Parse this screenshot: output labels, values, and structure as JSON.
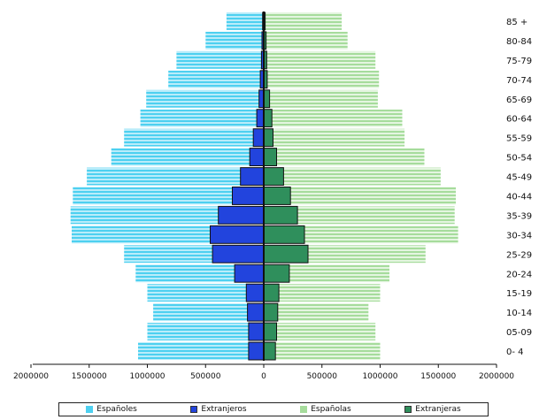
{
  "chart_data": {
    "type": "bar",
    "orientation": "horizontal-pyramid",
    "title": "",
    "xlabel": "",
    "ylabel": "",
    "categories": [
      "0-4",
      "05-09",
      "10-14",
      "15-19",
      "20-24",
      "25-29",
      "30-34",
      "35-39",
      "40-44",
      "45-49",
      "50-54",
      "55-59",
      "60-64",
      "65-69",
      "70-74",
      "75-79",
      "80-84",
      "85 +"
    ],
    "category_labels": [
      "0- 4",
      "05-09",
      "10-14",
      "15-19",
      "20-24",
      "25-29",
      "30-34",
      "35-39",
      "40-44",
      "45-49",
      "50-54",
      "55-59",
      "60-64",
      "65-69",
      "70-74",
      "75-79",
      "80-84",
      "85 +"
    ],
    "xlim": [
      -2000000,
      2000000
    ],
    "x_ticks": [
      -2000000,
      -1500000,
      -1000000,
      -500000,
      0,
      500000,
      1000000,
      1500000,
      2000000
    ],
    "x_tick_labels": [
      "2000000",
      "1500000",
      "1000000",
      "500000",
      "0",
      "500000",
      "1000000",
      "1500000",
      "2000000"
    ],
    "legend_position": "bottom",
    "grid": false,
    "series": [
      {
        "name": "Españoles",
        "side": "left",
        "color": "#4dd0f0",
        "pattern": "horizontal-stripes",
        "values": [
          1080000,
          1000000,
          950000,
          1000000,
          1100000,
          1200000,
          1650000,
          1660000,
          1640000,
          1520000,
          1310000,
          1200000,
          1060000,
          1010000,
          820000,
          750000,
          500000,
          320000
        ]
      },
      {
        "name": "Extranjeros",
        "side": "left",
        "color": "#2244dd",
        "pattern": "solid",
        "values": [
          130000,
          130000,
          140000,
          150000,
          250000,
          440000,
          460000,
          390000,
          270000,
          200000,
          120000,
          90000,
          60000,
          40000,
          30000,
          20000,
          15000,
          10000
        ]
      },
      {
        "name": "Españolas",
        "side": "right",
        "color": "#a6dc9c",
        "pattern": "horizontal-stripes",
        "values": [
          1000000,
          960000,
          900000,
          1000000,
          1080000,
          1390000,
          1670000,
          1640000,
          1650000,
          1520000,
          1380000,
          1210000,
          1190000,
          980000,
          990000,
          960000,
          720000,
          670000
        ]
      },
      {
        "name": "Extranjeras",
        "side": "right",
        "color": "#2f8f5c",
        "pattern": "solid",
        "values": [
          100000,
          110000,
          120000,
          130000,
          220000,
          380000,
          350000,
          290000,
          230000,
          170000,
          110000,
          80000,
          70000,
          50000,
          30000,
          25000,
          20000,
          12000
        ]
      }
    ]
  }
}
